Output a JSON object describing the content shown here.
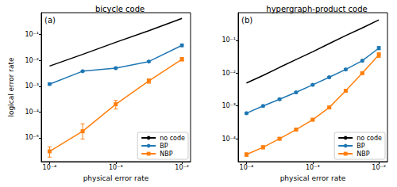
{
  "chart_data": [
    {
      "type": "line",
      "title": "bicycle code",
      "annotations": [
        "(a)"
      ],
      "xlabel": "physical error rate",
      "ylabel": "logical error rate",
      "log": true,
      "legend": "lower right",
      "grid": false,
      "x": [
        0.0001,
        0.000316,
        0.001,
        0.00316,
        0.01
      ],
      "xlim": [
        7.5e-05,
        0.0135
      ],
      "xticks": [
        {
          "value": 0.0001,
          "label": "10⁻⁴"
        },
        {
          "value": 0.001,
          "label": "10⁻³"
        },
        {
          "value": 0.01,
          "label": "10⁻²"
        }
      ],
      "ylim": [
        1.2e-06,
        0.7
      ],
      "yticks": [
        {
          "value": 1e-05,
          "label": "10⁻⁵"
        },
        {
          "value": 0.0001,
          "label": "10⁻⁴"
        },
        {
          "value": 0.001,
          "label": "10⁻³"
        },
        {
          "value": 0.01,
          "label": "10⁻²"
        },
        {
          "value": 0.1,
          "label": "10⁻¹"
        }
      ],
      "series": [
        {
          "name": "no code",
          "color": "#000000",
          "line_style": "solid",
          "values": [
            0.006,
            0.017,
            0.05,
            0.14,
            0.42
          ]
        },
        {
          "name": "BP",
          "color": "#1f77b4",
          "marker": "circle",
          "line_style": "solid",
          "values": [
            0.0012,
            0.0038,
            0.005,
            0.009,
            0.038
          ],
          "errors": [
            [
              0.0011,
              0.00135
            ],
            [
              0.0036,
              0.004
            ],
            [
              0.0047,
              0.0053
            ],
            [
              0.0085,
              0.0098
            ],
            [
              0.034,
              0.043
            ]
          ]
        },
        {
          "name": "NBP",
          "color": "#ff7f0e",
          "marker": "square",
          "line_style": "solid",
          "values": [
            3e-06,
            1.8e-05,
            0.0002,
            0.0016,
            0.011
          ],
          "errors": [
            [
              1.8e-06,
              4.5e-06
            ],
            [
              9e-06,
              3.5e-05
            ],
            [
              0.00013,
              0.00028
            ],
            [
              0.0013,
              0.0019
            ],
            [
              0.0095,
              0.013
            ]
          ]
        }
      ]
    },
    {
      "type": "line",
      "title": "hypergraph-product code",
      "annotations": [
        "(b)"
      ],
      "xlabel": "physical error rate",
      "log": true,
      "legend": "lower right",
      "grid": false,
      "x": [
        0.0001,
        0.000178,
        0.000316,
        0.000562,
        0.001,
        0.00178,
        0.00316,
        0.00562,
        0.01
      ],
      "xlim": [
        7.5e-05,
        0.0135
      ],
      "xticks": [
        {
          "value": 0.0001,
          "label": "10⁻⁴"
        },
        {
          "value": 0.001,
          "label": "10⁻³"
        },
        {
          "value": 0.01,
          "label": "10⁻²"
        }
      ],
      "ylim": [
        2e-05,
        0.7
      ],
      "yticks": [
        {
          "value": 0.0001,
          "label": "10⁻⁴"
        },
        {
          "value": 0.001,
          "label": "10⁻³"
        },
        {
          "value": 0.01,
          "label": "10⁻²"
        },
        {
          "value": 0.1,
          "label": "10⁻¹"
        }
      ],
      "series": [
        {
          "name": "no code",
          "color": "#000000",
          "line_style": "solid",
          "values": [
            0.005,
            0.0085,
            0.015,
            0.026,
            0.045,
            0.08,
            0.14,
            0.24,
            0.42
          ]
        },
        {
          "name": "BP",
          "color": "#1f77b4",
          "marker": "circle",
          "line_style": "solid",
          "values": [
            0.0006,
            0.001,
            0.0016,
            0.0026,
            0.0044,
            0.0075,
            0.013,
            0.024,
            0.058
          ],
          "errors": [
            [
              0.00056,
              0.00064
            ],
            [
              0.00093,
              0.00107
            ],
            [
              0.00149,
              0.00171
            ],
            [
              0.00242,
              0.00278
            ],
            [
              0.0041,
              0.0047
            ],
            [
              0.007,
              0.008
            ],
            [
              0.0121,
              0.0139
            ],
            [
              0.0223,
              0.0257
            ],
            [
              0.052,
              0.065
            ]
          ]
        },
        {
          "name": "NBP",
          "color": "#ff7f0e",
          "marker": "square",
          "line_style": "solid",
          "values": [
            3.3e-05,
            5.5e-05,
            0.0001,
            0.00019,
            0.00038,
            0.0009,
            0.0029,
            0.01,
            0.036
          ],
          "errors": [
            [
              2.9e-05,
              3.7e-05
            ],
            [
              4.9e-05,
              6.1e-05
            ],
            [
              9.2e-05,
              0.000108
            ],
            [
              0.000177,
              0.000203
            ],
            [
              0.00036,
              0.0004
            ],
            [
              0.00086,
              0.00094
            ],
            [
              0.0028,
              0.003
            ],
            [
              0.0097,
              0.0103
            ],
            [
              0.03,
              0.042
            ]
          ]
        }
      ]
    }
  ]
}
